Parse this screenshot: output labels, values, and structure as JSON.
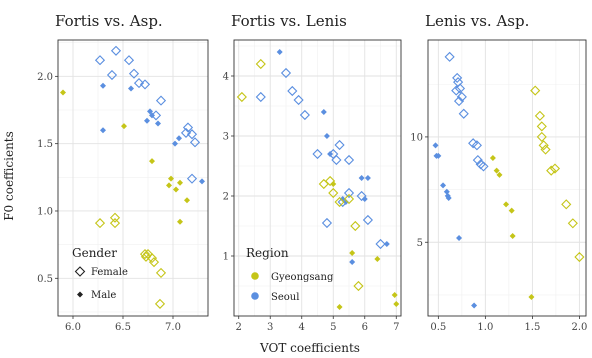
{
  "chart_data": {
    "type": "scatter",
    "xlabel": "VOT coefficients",
    "ylabel": "F0 coefficients",
    "colors": {
      "Gyeongsang": "#c5c518",
      "Seoul": "#5b8fe0"
    },
    "legend_gender": {
      "title": "Gender",
      "items": [
        "Female",
        "Male"
      ],
      "placement": "bottom-left of first panel"
    },
    "legend_region": {
      "title": "Region",
      "items": [
        "Gyeongsang",
        "Seoul"
      ],
      "placement": "bottom-left of second panel"
    },
    "panels": [
      {
        "title": "Fortis vs. Asp.",
        "xlim": [
          5.85,
          7.35
        ],
        "ylim": [
          0.22,
          2.27
        ],
        "xticks": [
          "6.0",
          "6.5",
          "7.0"
        ],
        "xtick_values": [
          6.0,
          6.5,
          7.0
        ],
        "yticks": [
          "0.5",
          "1.0",
          "1.5",
          "2.0"
        ],
        "ytick_values": [
          0.5,
          1.0,
          1.5,
          2.0
        ],
        "points": [
          {
            "x": 6.43,
            "y": 2.19,
            "g": "Female",
            "r": "Seoul"
          },
          {
            "x": 6.27,
            "y": 2.12,
            "g": "Female",
            "r": "Seoul"
          },
          {
            "x": 6.56,
            "y": 2.12,
            "g": "Female",
            "r": "Seoul"
          },
          {
            "x": 6.39,
            "y": 2.01,
            "g": "Female",
            "r": "Seoul"
          },
          {
            "x": 6.61,
            "y": 2.02,
            "g": "Female",
            "r": "Seoul"
          },
          {
            "x": 6.66,
            "y": 1.95,
            "g": "Female",
            "r": "Seoul"
          },
          {
            "x": 6.72,
            "y": 1.94,
            "g": "Female",
            "r": "Seoul"
          },
          {
            "x": 6.88,
            "y": 1.82,
            "g": "Female",
            "r": "Seoul"
          },
          {
            "x": 6.83,
            "y": 1.71,
            "g": "Female",
            "r": "Seoul"
          },
          {
            "x": 7.15,
            "y": 1.62,
            "g": "Female",
            "r": "Seoul"
          },
          {
            "x": 7.13,
            "y": 1.58,
            "g": "Female",
            "r": "Seoul"
          },
          {
            "x": 7.19,
            "y": 1.57,
            "g": "Female",
            "r": "Seoul"
          },
          {
            "x": 7.22,
            "y": 1.51,
            "g": "Female",
            "r": "Seoul"
          },
          {
            "x": 7.19,
            "y": 1.24,
            "g": "Female",
            "r": "Seoul"
          },
          {
            "x": 6.3,
            "y": 1.93,
            "g": "Male",
            "r": "Seoul"
          },
          {
            "x": 6.58,
            "y": 1.91,
            "g": "Male",
            "r": "Seoul"
          },
          {
            "x": 6.77,
            "y": 1.74,
            "g": "Male",
            "r": "Seoul"
          },
          {
            "x": 6.79,
            "y": 1.71,
            "g": "Male",
            "r": "Seoul"
          },
          {
            "x": 6.74,
            "y": 1.67,
            "g": "Male",
            "r": "Seoul"
          },
          {
            "x": 6.85,
            "y": 1.65,
            "g": "Male",
            "r": "Seoul"
          },
          {
            "x": 6.3,
            "y": 1.6,
            "g": "Male",
            "r": "Seoul"
          },
          {
            "x": 7.06,
            "y": 1.54,
            "g": "Male",
            "r": "Seoul"
          },
          {
            "x": 7.02,
            "y": 1.5,
            "g": "Male",
            "r": "Seoul"
          },
          {
            "x": 7.29,
            "y": 1.22,
            "g": "Male",
            "r": "Seoul"
          },
          {
            "x": 6.27,
            "y": 0.91,
            "g": "Female",
            "r": "Gyeongsang"
          },
          {
            "x": 6.42,
            "y": 0.95,
            "g": "Female",
            "r": "Gyeongsang"
          },
          {
            "x": 6.42,
            "y": 0.91,
            "g": "Female",
            "r": "Gyeongsang"
          },
          {
            "x": 6.72,
            "y": 0.68,
            "g": "Female",
            "r": "Gyeongsang"
          },
          {
            "x": 6.75,
            "y": 0.68,
            "g": "Female",
            "r": "Gyeongsang"
          },
          {
            "x": 6.73,
            "y": 0.66,
            "g": "Female",
            "r": "Gyeongsang"
          },
          {
            "x": 6.79,
            "y": 0.65,
            "g": "Female",
            "r": "Gyeongsang"
          },
          {
            "x": 6.81,
            "y": 0.62,
            "g": "Female",
            "r": "Gyeongsang"
          },
          {
            "x": 6.88,
            "y": 0.54,
            "g": "Female",
            "r": "Gyeongsang"
          },
          {
            "x": 6.87,
            "y": 0.31,
            "g": "Female",
            "r": "Gyeongsang"
          },
          {
            "x": 5.9,
            "y": 1.88,
            "g": "Male",
            "r": "Gyeongsang"
          },
          {
            "x": 6.51,
            "y": 1.63,
            "g": "Male",
            "r": "Gyeongsang"
          },
          {
            "x": 6.79,
            "y": 1.37,
            "g": "Male",
            "r": "Gyeongsang"
          },
          {
            "x": 6.98,
            "y": 1.24,
            "g": "Male",
            "r": "Gyeongsang"
          },
          {
            "x": 6.96,
            "y": 1.19,
            "g": "Male",
            "r": "Gyeongsang"
          },
          {
            "x": 7.03,
            "y": 1.16,
            "g": "Male",
            "r": "Gyeongsang"
          },
          {
            "x": 7.07,
            "y": 1.21,
            "g": "Male",
            "r": "Gyeongsang"
          },
          {
            "x": 7.14,
            "y": 1.08,
            "g": "Male",
            "r": "Gyeongsang"
          },
          {
            "x": 7.07,
            "y": 0.92,
            "g": "Male",
            "r": "Gyeongsang"
          }
        ]
      },
      {
        "title": "Fortis vs. Lenis",
        "xlim": [
          1.85,
          7.15
        ],
        "ylim": [
          0.0,
          4.6
        ],
        "xticks": [
          "2",
          "3",
          "4",
          "5",
          "6",
          "7"
        ],
        "xtick_values": [
          2,
          3,
          4,
          5,
          6,
          7
        ],
        "yticks": [
          "1",
          "2",
          "3",
          "4"
        ],
        "ytick_values": [
          1,
          2,
          3,
          4
        ],
        "points": [
          {
            "x": 3.5,
            "y": 4.05,
            "g": "Female",
            "r": "Seoul"
          },
          {
            "x": 2.7,
            "y": 3.65,
            "g": "Female",
            "r": "Seoul"
          },
          {
            "x": 3.7,
            "y": 3.75,
            "g": "Female",
            "r": "Seoul"
          },
          {
            "x": 3.9,
            "y": 3.6,
            "g": "Female",
            "r": "Seoul"
          },
          {
            "x": 4.1,
            "y": 3.35,
            "g": "Female",
            "r": "Seoul"
          },
          {
            "x": 4.5,
            "y": 2.7,
            "g": "Female",
            "r": "Seoul"
          },
          {
            "x": 5.0,
            "y": 2.7,
            "g": "Female",
            "r": "Seoul"
          },
          {
            "x": 5.2,
            "y": 2.85,
            "g": "Female",
            "r": "Seoul"
          },
          {
            "x": 5.1,
            "y": 2.6,
            "g": "Female",
            "r": "Seoul"
          },
          {
            "x": 5.5,
            "y": 2.6,
            "g": "Female",
            "r": "Seoul"
          },
          {
            "x": 5.5,
            "y": 2.05,
            "g": "Female",
            "r": "Seoul"
          },
          {
            "x": 5.3,
            "y": 1.9,
            "g": "Female",
            "r": "Seoul"
          },
          {
            "x": 5.9,
            "y": 2.0,
            "g": "Female",
            "r": "Seoul"
          },
          {
            "x": 4.8,
            "y": 1.55,
            "g": "Female",
            "r": "Seoul"
          },
          {
            "x": 6.1,
            "y": 1.6,
            "g": "Female",
            "r": "Seoul"
          },
          {
            "x": 6.5,
            "y": 1.2,
            "g": "Female",
            "r": "Seoul"
          },
          {
            "x": 3.3,
            "y": 4.4,
            "g": "Male",
            "r": "Seoul"
          },
          {
            "x": 4.7,
            "y": 3.4,
            "g": "Male",
            "r": "Seoul"
          },
          {
            "x": 4.8,
            "y": 3.0,
            "g": "Male",
            "r": "Seoul"
          },
          {
            "x": 4.9,
            "y": 2.7,
            "g": "Male",
            "r": "Seoul"
          },
          {
            "x": 5.9,
            "y": 2.3,
            "g": "Male",
            "r": "Seoul"
          },
          {
            "x": 6.1,
            "y": 2.3,
            "g": "Male",
            "r": "Seoul"
          },
          {
            "x": 5.3,
            "y": 1.95,
            "g": "Male",
            "r": "Seoul"
          },
          {
            "x": 5.4,
            "y": 1.9,
            "g": "Male",
            "r": "Seoul"
          },
          {
            "x": 6.0,
            "y": 1.95,
            "g": "Male",
            "r": "Seoul"
          },
          {
            "x": 6.7,
            "y": 1.2,
            "g": "Male",
            "r": "Seoul"
          },
          {
            "x": 5.6,
            "y": 0.9,
            "g": "Male",
            "r": "Seoul"
          },
          {
            "x": 2.1,
            "y": 3.65,
            "g": "Female",
            "r": "Gyeongsang"
          },
          {
            "x": 2.7,
            "y": 4.2,
            "g": "Female",
            "r": "Gyeongsang"
          },
          {
            "x": 4.7,
            "y": 2.2,
            "g": "Female",
            "r": "Gyeongsang"
          },
          {
            "x": 4.9,
            "y": 2.25,
            "g": "Female",
            "r": "Gyeongsang"
          },
          {
            "x": 5.0,
            "y": 2.05,
            "g": "Female",
            "r": "Gyeongsang"
          },
          {
            "x": 5.2,
            "y": 1.9,
            "g": "Female",
            "r": "Gyeongsang"
          },
          {
            "x": 5.5,
            "y": 1.95,
            "g": "Female",
            "r": "Gyeongsang"
          },
          {
            "x": 5.7,
            "y": 1.5,
            "g": "Female",
            "r": "Gyeongsang"
          },
          {
            "x": 5.8,
            "y": 0.5,
            "g": "Female",
            "r": "Gyeongsang"
          },
          {
            "x": 5.0,
            "y": 2.2,
            "g": "Male",
            "r": "Gyeongsang"
          },
          {
            "x": 5.6,
            "y": 1.05,
            "g": "Male",
            "r": "Gyeongsang"
          },
          {
            "x": 6.4,
            "y": 0.95,
            "g": "Male",
            "r": "Gyeongsang"
          },
          {
            "x": 5.2,
            "y": 0.15,
            "g": "Male",
            "r": "Gyeongsang"
          },
          {
            "x": 6.95,
            "y": 0.35,
            "g": "Male",
            "r": "Gyeongsang"
          },
          {
            "x": 7.0,
            "y": 0.2,
            "g": "Male",
            "r": "Gyeongsang"
          }
        ]
      },
      {
        "title": "Lenis vs. Asp.",
        "xlim": [
          0.39,
          2.07
        ],
        "ylim": [
          1.5,
          14.6
        ],
        "xticks": [
          "0.5",
          "1.0",
          "1.5",
          "2.0"
        ],
        "xtick_values": [
          0.5,
          1.0,
          1.5,
          2.0
        ],
        "yticks": [
          "5",
          "10"
        ],
        "ytick_values": [
          5,
          10
        ],
        "points": [
          {
            "x": 0.62,
            "y": 13.8,
            "g": "Female",
            "r": "Seoul"
          },
          {
            "x": 0.7,
            "y": 12.8,
            "g": "Female",
            "r": "Seoul"
          },
          {
            "x": 0.71,
            "y": 12.6,
            "g": "Female",
            "r": "Seoul"
          },
          {
            "x": 0.73,
            "y": 12.3,
            "g": "Female",
            "r": "Seoul"
          },
          {
            "x": 0.69,
            "y": 12.2,
            "g": "Female",
            "r": "Seoul"
          },
          {
            "x": 0.75,
            "y": 11.9,
            "g": "Female",
            "r": "Seoul"
          },
          {
            "x": 0.72,
            "y": 11.7,
            "g": "Female",
            "r": "Seoul"
          },
          {
            "x": 0.77,
            "y": 11.1,
            "g": "Female",
            "r": "Seoul"
          },
          {
            "x": 0.87,
            "y": 9.7,
            "g": "Female",
            "r": "Seoul"
          },
          {
            "x": 0.91,
            "y": 9.6,
            "g": "Female",
            "r": "Seoul"
          },
          {
            "x": 0.92,
            "y": 8.9,
            "g": "Female",
            "r": "Seoul"
          },
          {
            "x": 0.95,
            "y": 8.7,
            "g": "Female",
            "r": "Seoul"
          },
          {
            "x": 0.98,
            "y": 8.6,
            "g": "Female",
            "r": "Seoul"
          },
          {
            "x": 0.47,
            "y": 9.6,
            "g": "Male",
            "r": "Seoul"
          },
          {
            "x": 0.48,
            "y": 9.1,
            "g": "Male",
            "r": "Seoul"
          },
          {
            "x": 0.5,
            "y": 9.1,
            "g": "Male",
            "r": "Seoul"
          },
          {
            "x": 0.55,
            "y": 7.7,
            "g": "Male",
            "r": "Seoul"
          },
          {
            "x": 0.59,
            "y": 7.4,
            "g": "Male",
            "r": "Seoul"
          },
          {
            "x": 0.6,
            "y": 7.2,
            "g": "Male",
            "r": "Seoul"
          },
          {
            "x": 0.61,
            "y": 7.1,
            "g": "Male",
            "r": "Seoul"
          },
          {
            "x": 0.72,
            "y": 5.2,
            "g": "Male",
            "r": "Seoul"
          },
          {
            "x": 0.88,
            "y": 2.0,
            "g": "Male",
            "r": "Seoul"
          },
          {
            "x": 1.53,
            "y": 12.2,
            "g": "Female",
            "r": "Gyeongsang"
          },
          {
            "x": 1.58,
            "y": 11.0,
            "g": "Female",
            "r": "Gyeongsang"
          },
          {
            "x": 1.6,
            "y": 10.5,
            "g": "Female",
            "r": "Gyeongsang"
          },
          {
            "x": 1.6,
            "y": 10.0,
            "g": "Female",
            "r": "Gyeongsang"
          },
          {
            "x": 1.62,
            "y": 9.6,
            "g": "Female",
            "r": "Gyeongsang"
          },
          {
            "x": 1.64,
            "y": 9.4,
            "g": "Female",
            "r": "Gyeongsang"
          },
          {
            "x": 1.7,
            "y": 8.4,
            "g": "Female",
            "r": "Gyeongsang"
          },
          {
            "x": 1.74,
            "y": 8.5,
            "g": "Female",
            "r": "Gyeongsang"
          },
          {
            "x": 1.86,
            "y": 6.8,
            "g": "Female",
            "r": "Gyeongsang"
          },
          {
            "x": 1.93,
            "y": 5.9,
            "g": "Female",
            "r": "Gyeongsang"
          },
          {
            "x": 2.0,
            "y": 4.3,
            "g": "Female",
            "r": "Gyeongsang"
          },
          {
            "x": 1.08,
            "y": 9.0,
            "g": "Male",
            "r": "Gyeongsang"
          },
          {
            "x": 1.12,
            "y": 8.4,
            "g": "Male",
            "r": "Gyeongsang"
          },
          {
            "x": 1.15,
            "y": 8.2,
            "g": "Male",
            "r": "Gyeongsang"
          },
          {
            "x": 1.22,
            "y": 6.8,
            "g": "Male",
            "r": "Gyeongsang"
          },
          {
            "x": 1.28,
            "y": 6.5,
            "g": "Male",
            "r": "Gyeongsang"
          },
          {
            "x": 1.29,
            "y": 5.3,
            "g": "Male",
            "r": "Gyeongsang"
          },
          {
            "x": 1.49,
            "y": 2.4,
            "g": "Male",
            "r": "Gyeongsang"
          }
        ]
      }
    ]
  }
}
